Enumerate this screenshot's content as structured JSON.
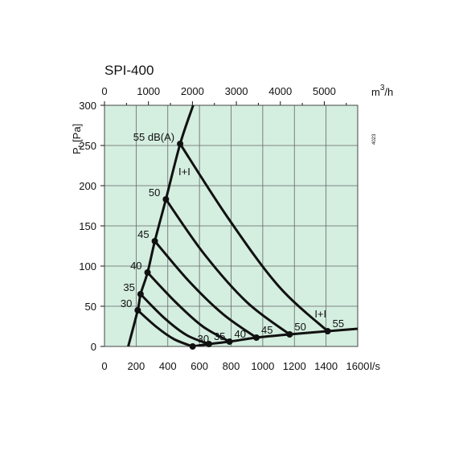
{
  "chart_data": {
    "type": "line",
    "title": "SPI-400",
    "side_note": "4023",
    "xlabel_bottom": "l/s",
    "xlabel_top": "m³/h",
    "ylabel": "Pt [Pa]",
    "xlim": [
      0,
      1600
    ],
    "ylim": [
      0,
      300
    ],
    "x_ticks": [
      "0",
      "200",
      "400",
      "600",
      "800",
      "1000",
      "1200",
      "1400",
      "1600"
    ],
    "x_top_ticks": [
      "0",
      "1000",
      "2000",
      "3000",
      "4000",
      "5000"
    ],
    "y_ticks": [
      "0",
      "50",
      "100",
      "150",
      "200",
      "250",
      "300"
    ],
    "grid": true,
    "background_color": "#d4eee0",
    "line_color": "#111111",
    "regulator_mark": "I+I",
    "max_speed_line": [
      [
        150,
        0
      ],
      [
        210,
        45
      ],
      [
        228,
        65
      ],
      [
        272,
        92
      ],
      [
        318,
        131
      ],
      [
        388,
        183
      ],
      [
        478,
        252
      ],
      [
        560,
        300
      ]
    ],
    "min_pressure_line": [
      [
        557,
        0
      ],
      [
        660,
        3
      ],
      [
        790,
        6
      ],
      [
        960,
        11
      ],
      [
        1170,
        15
      ],
      [
        1410,
        19
      ],
      [
        1600,
        22
      ]
    ],
    "regulator_curves": [
      {
        "label": "30",
        "points": [
          [
            210,
            45
          ],
          [
            330,
            24
          ],
          [
            440,
            9
          ],
          [
            557,
            0
          ]
        ]
      },
      {
        "label": "35",
        "points": [
          [
            228,
            65
          ],
          [
            380,
            35
          ],
          [
            520,
            14
          ],
          [
            660,
            3
          ]
        ]
      },
      {
        "label": "40",
        "points": [
          [
            272,
            92
          ],
          [
            450,
            55
          ],
          [
            620,
            25
          ],
          [
            790,
            6
          ]
        ]
      },
      {
        "label": "45",
        "points": [
          [
            318,
            131
          ],
          [
            530,
            82
          ],
          [
            750,
            40
          ],
          [
            960,
            11
          ]
        ]
      },
      {
        "label": "50",
        "points": [
          [
            388,
            183
          ],
          [
            630,
            115
          ],
          [
            900,
            55
          ],
          [
            1170,
            15
          ]
        ]
      },
      {
        "label": "55",
        "points": [
          [
            478,
            252
          ],
          [
            780,
            160
          ],
          [
            1100,
            75
          ],
          [
            1410,
            19
          ]
        ]
      }
    ],
    "left_labels": [
      "30",
      "35",
      "40",
      "45",
      "50",
      "55 dB(A)"
    ],
    "bottom_labels": [
      "30",
      "35",
      "40",
      "45",
      "50",
      "55"
    ]
  }
}
